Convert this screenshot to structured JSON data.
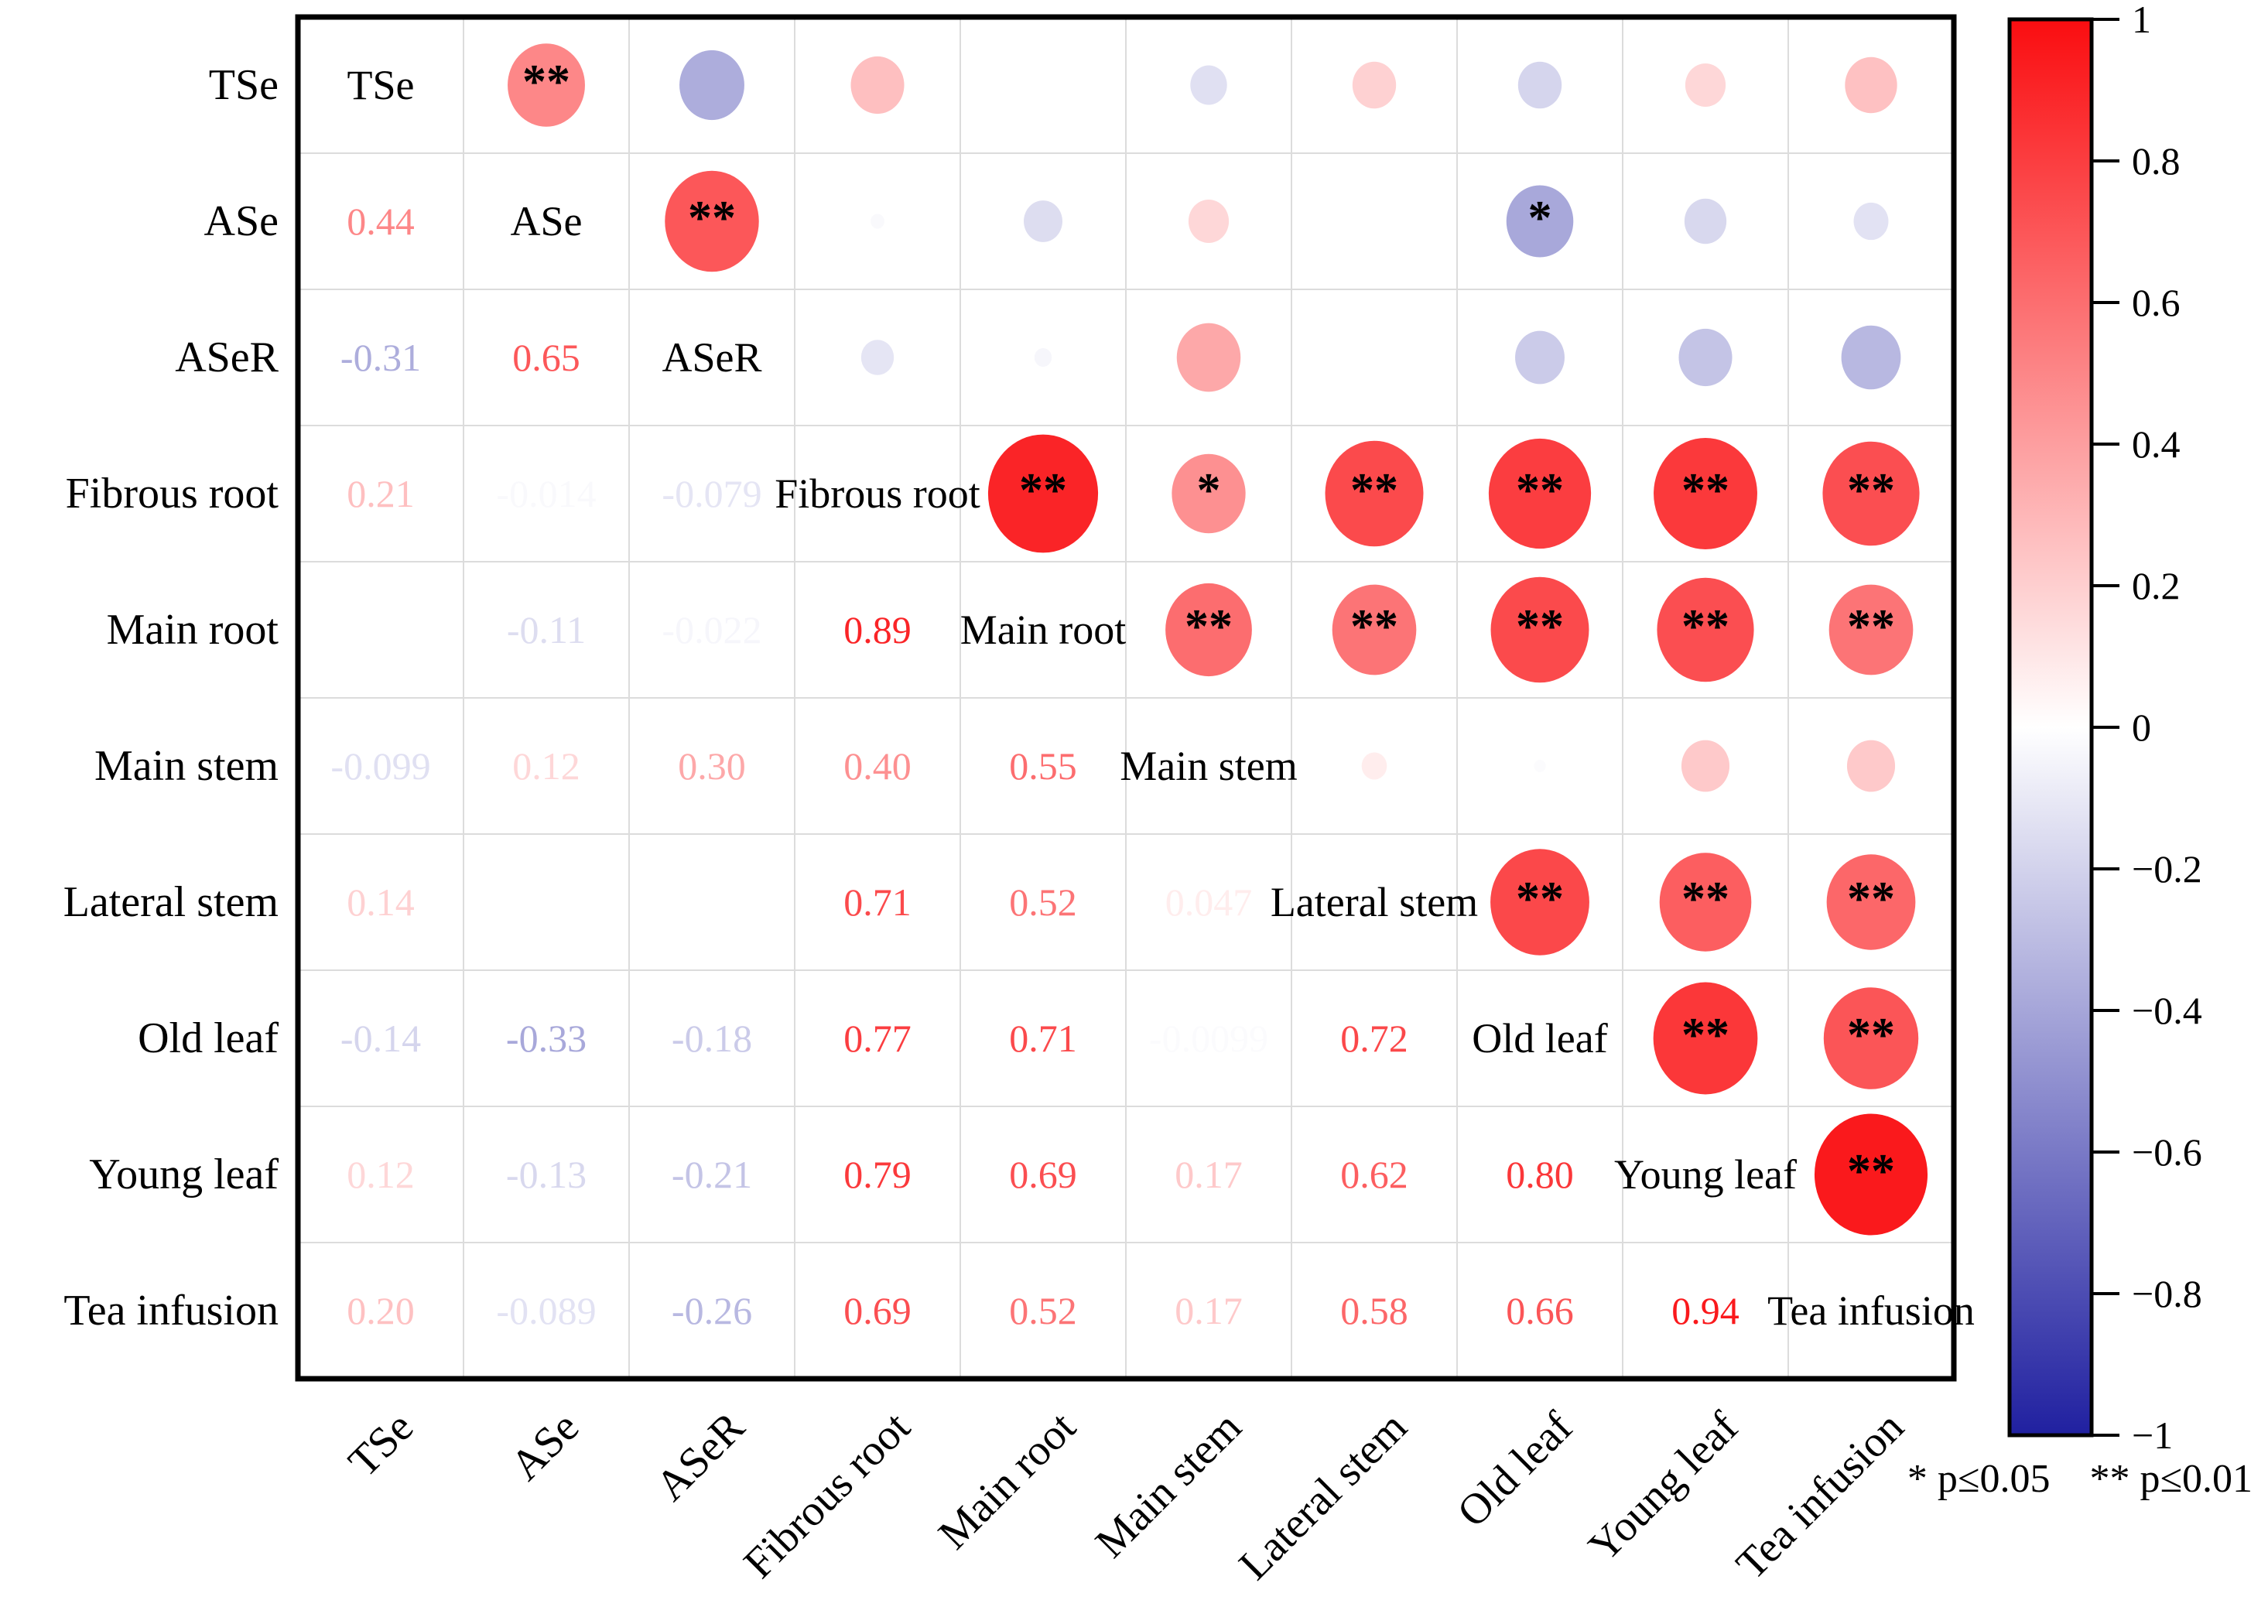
{
  "chart_data": {
    "type": "heatmap",
    "subtype": "correlation-matrix-corrplot",
    "variables": [
      "TSe",
      "ASe",
      "ASeR",
      "Fibrous root",
      "Main root",
      "Main stem",
      "Lateral stem",
      "Old leaf",
      "Young leaf",
      "Tea infusion"
    ],
    "lower_triangle_shows": "correlation coefficients as colored numbers",
    "upper_triangle_shows": "circles sized and colored by correlation with significance stars",
    "cells": [
      {
        "row": "ASe",
        "col": "TSe",
        "r": "0.44",
        "stars": "**"
      },
      {
        "row": "ASeR",
        "col": "TSe",
        "r": "-0.31",
        "stars": ""
      },
      {
        "row": "ASeR",
        "col": "ASe",
        "r": "0.65",
        "stars": "**"
      },
      {
        "row": "Fibrous root",
        "col": "TSe",
        "r": "0.21",
        "stars": ""
      },
      {
        "row": "Fibrous root",
        "col": "ASe",
        "r": "-0.014",
        "stars": ""
      },
      {
        "row": "Fibrous root",
        "col": "ASeR",
        "r": "-0.079",
        "stars": ""
      },
      {
        "row": "Main root",
        "col": "ASe",
        "r": "-0.11",
        "stars": ""
      },
      {
        "row": "Main root",
        "col": "ASeR",
        "r": "-0.022",
        "stars": ""
      },
      {
        "row": "Main root",
        "col": "Fibrous root",
        "r": "0.89",
        "stars": "**"
      },
      {
        "row": "Main stem",
        "col": "TSe",
        "r": "-0.099",
        "stars": ""
      },
      {
        "row": "Main stem",
        "col": "ASe",
        "r": "0.12",
        "stars": ""
      },
      {
        "row": "Main stem",
        "col": "ASeR",
        "r": "0.30",
        "stars": ""
      },
      {
        "row": "Main stem",
        "col": "Fibrous root",
        "r": "0.40",
        "stars": "*"
      },
      {
        "row": "Main stem",
        "col": "Main root",
        "r": "0.55",
        "stars": "**"
      },
      {
        "row": "Lateral stem",
        "col": "TSe",
        "r": "0.14",
        "stars": ""
      },
      {
        "row": "Lateral stem",
        "col": "Fibrous root",
        "r": "0.71",
        "stars": "**"
      },
      {
        "row": "Lateral stem",
        "col": "Main root",
        "r": "0.52",
        "stars": "**"
      },
      {
        "row": "Lateral stem",
        "col": "Main stem",
        "r": "0.047",
        "stars": ""
      },
      {
        "row": "Old leaf",
        "col": "TSe",
        "r": "-0.14",
        "stars": ""
      },
      {
        "row": "Old leaf",
        "col": "ASe",
        "r": "-0.33",
        "stars": "*"
      },
      {
        "row": "Old leaf",
        "col": "ASeR",
        "r": "-0.18",
        "stars": ""
      },
      {
        "row": "Old leaf",
        "col": "Fibrous root",
        "r": "0.77",
        "stars": "**"
      },
      {
        "row": "Old leaf",
        "col": "Main root",
        "r": "0.71",
        "stars": "**"
      },
      {
        "row": "Old leaf",
        "col": "Main stem",
        "r": "-0.0099",
        "stars": ""
      },
      {
        "row": "Old leaf",
        "col": "Lateral stem",
        "r": "0.72",
        "stars": "**"
      },
      {
        "row": "Young leaf",
        "col": "TSe",
        "r": "0.12",
        "stars": ""
      },
      {
        "row": "Young leaf",
        "col": "ASe",
        "r": "-0.13",
        "stars": ""
      },
      {
        "row": "Young leaf",
        "col": "ASeR",
        "r": "-0.21",
        "stars": ""
      },
      {
        "row": "Young leaf",
        "col": "Fibrous root",
        "r": "0.79",
        "stars": "**"
      },
      {
        "row": "Young leaf",
        "col": "Main root",
        "r": "0.69",
        "stars": "**"
      },
      {
        "row": "Young leaf",
        "col": "Main stem",
        "r": "0.17",
        "stars": ""
      },
      {
        "row": "Young leaf",
        "col": "Lateral stem",
        "r": "0.62",
        "stars": "**"
      },
      {
        "row": "Young leaf",
        "col": "Old leaf",
        "r": "0.80",
        "stars": "**"
      },
      {
        "row": "Tea infusion",
        "col": "TSe",
        "r": "0.20",
        "stars": ""
      },
      {
        "row": "Tea infusion",
        "col": "ASe",
        "r": "-0.089",
        "stars": ""
      },
      {
        "row": "Tea infusion",
        "col": "ASeR",
        "r": "-0.26",
        "stars": ""
      },
      {
        "row": "Tea infusion",
        "col": "Fibrous root",
        "r": "0.69",
        "stars": "**"
      },
      {
        "row": "Tea infusion",
        "col": "Main root",
        "r": "0.52",
        "stars": "**"
      },
      {
        "row": "Tea infusion",
        "col": "Main stem",
        "r": "0.17",
        "stars": ""
      },
      {
        "row": "Tea infusion",
        "col": "Lateral stem",
        "r": "0.58",
        "stars": "**"
      },
      {
        "row": "Tea infusion",
        "col": "Old leaf",
        "r": "0.66",
        "stars": "**"
      },
      {
        "row": "Tea infusion",
        "col": "Young leaf",
        "r": "0.94",
        "stars": "**"
      }
    ],
    "colorbar": {
      "tick_labels": [
        "1",
        "0.8",
        "0.6",
        "0.4",
        "0.2",
        "0",
        "−0.2",
        "−0.4",
        "−0.6",
        "−0.8",
        "−1"
      ],
      "tick_values": [
        1,
        0.8,
        0.6,
        0.4,
        0.2,
        0,
        -0.2,
        -0.4,
        -0.6,
        -0.8,
        -1
      ],
      "range": [
        -1,
        1
      ],
      "max_color": "#fa0d10",
      "mid_color": "#ffffff",
      "min_color": "#2020a0"
    },
    "legend": {
      "p05": "* p≤0.05",
      "p01": "** p≤0.01"
    },
    "grid_color": "#dcdcdc",
    "border_color": "#000000",
    "label_color": "#000000"
  }
}
